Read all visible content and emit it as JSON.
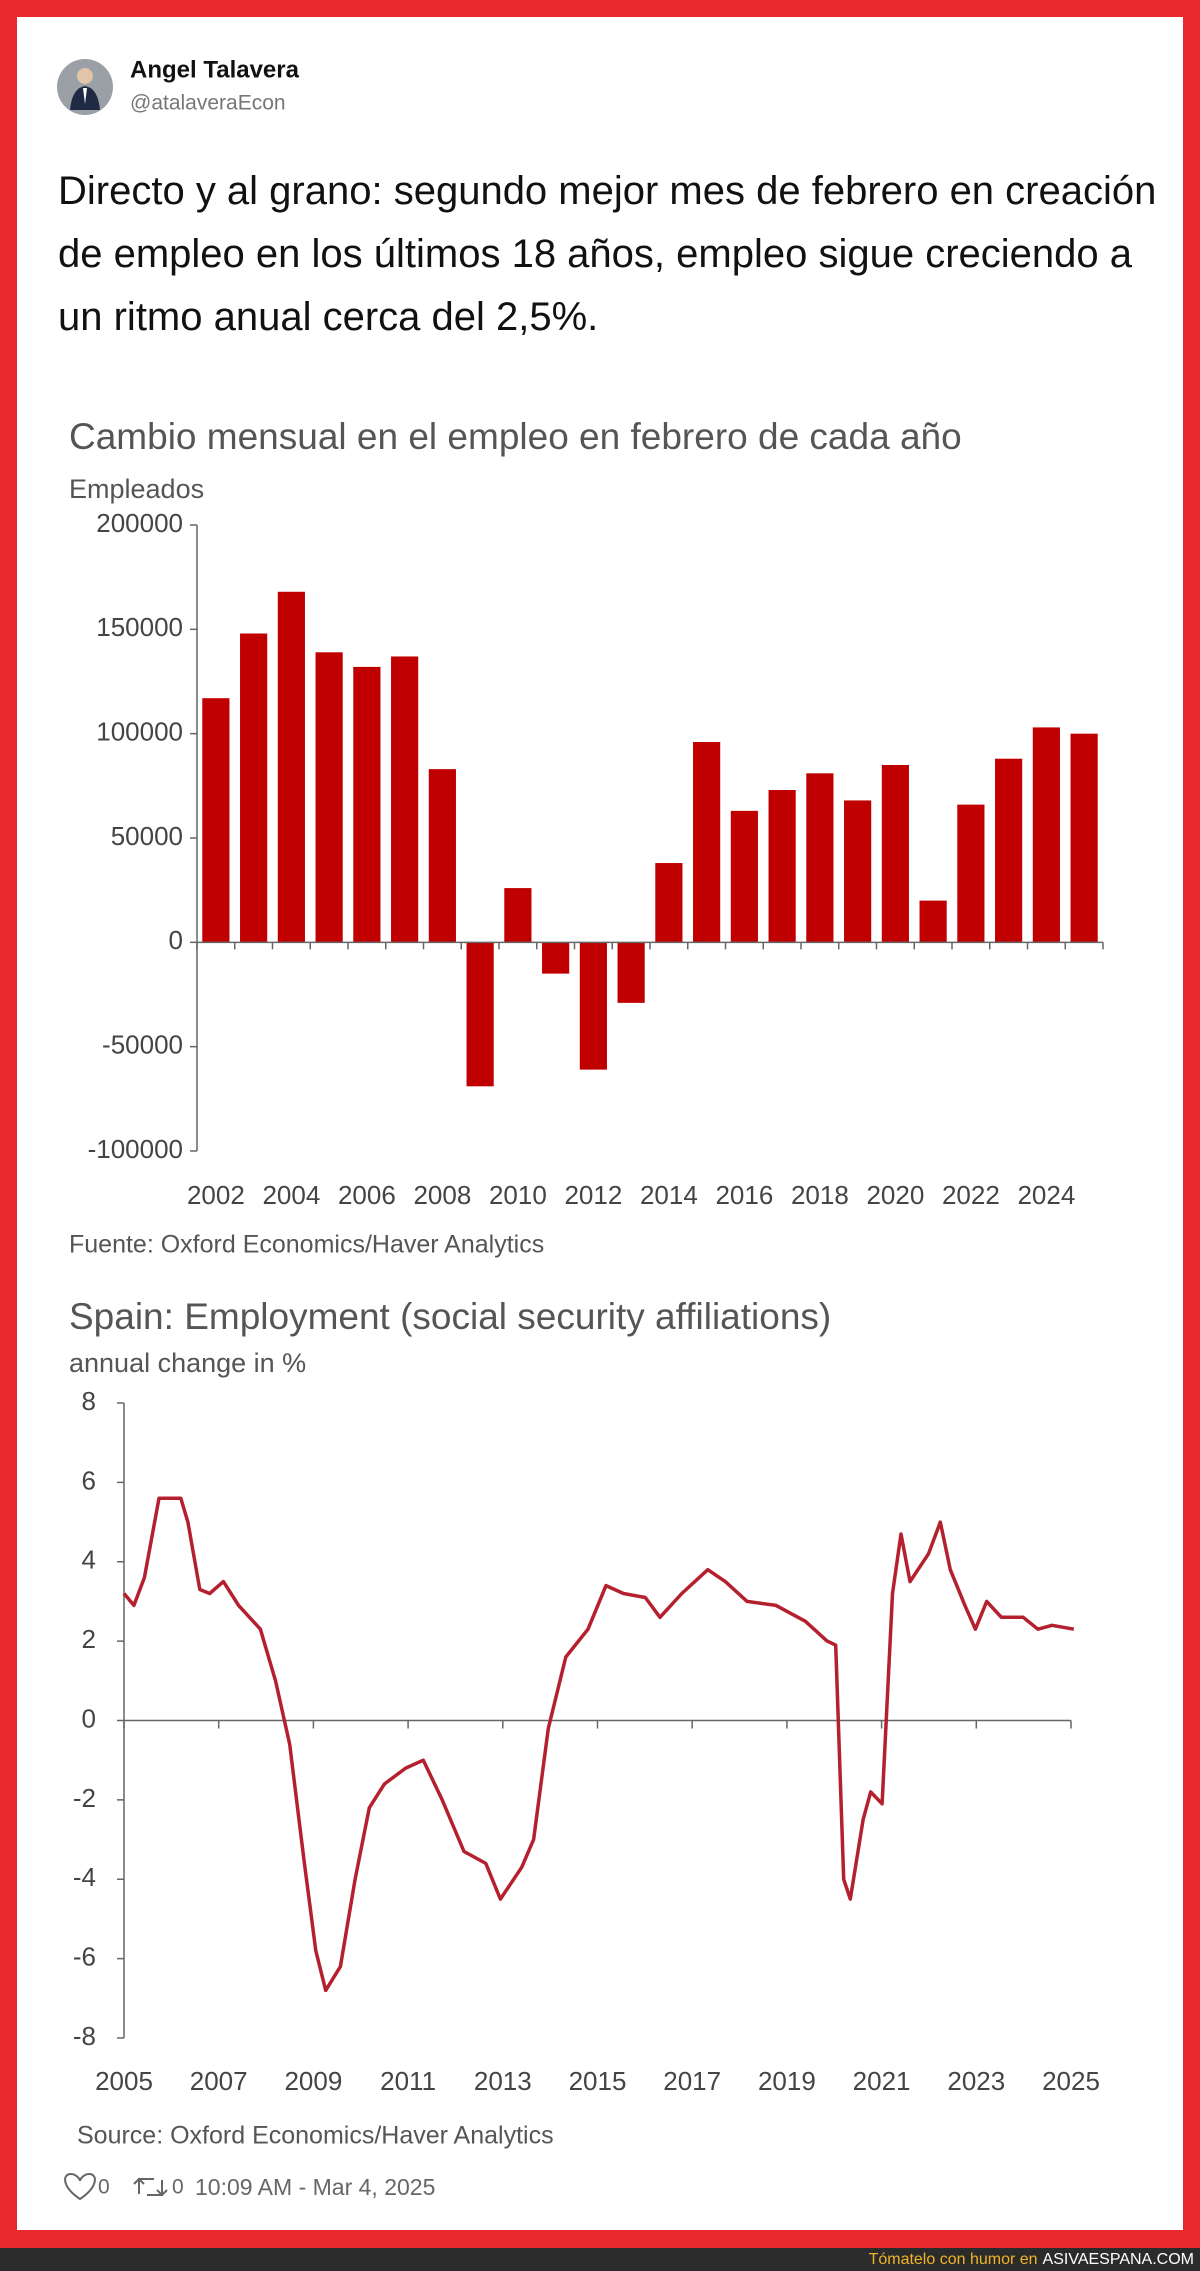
{
  "header": {
    "name": "Angel Talavera",
    "handle": "@atalaveraEcon"
  },
  "text": "Directo y al grano: segundo mejor mes de febrero en creación de empleo en los últimos 18 años, empleo sigue creciendo a un ritmo anual cerca del 2,5%.",
  "chart_data": [
    {
      "type": "bar",
      "title": "Cambio mensual en el empleo en febrero de cada año",
      "ylabel": "Empleados",
      "source": "Fuente: Oxford Economics/Haver Analytics",
      "categories": [
        "2002",
        null,
        "2004",
        null,
        "2006",
        null,
        "2008",
        null,
        "2010",
        null,
        "2012",
        null,
        "2014",
        null,
        "2016",
        null,
        "2018",
        null,
        "2020",
        null,
        "2022",
        null,
        "2024",
        null
      ],
      "values": [
        117000,
        148000,
        168000,
        139000,
        132000,
        137000,
        83000,
        -69000,
        26000,
        -15000,
        -61000,
        -29000,
        38000,
        96000,
        63000,
        73000,
        81000,
        68000,
        85000,
        20000,
        66000,
        88000,
        103000,
        100000
      ],
      "color": "#c00000",
      "ylim": [
        -100000,
        200000
      ],
      "yticks": [
        -100000,
        -50000,
        0,
        50000,
        100000,
        150000,
        200000
      ]
    },
    {
      "type": "line",
      "title": "Spain: Employment (social security affiliations)",
      "ylabel": "annual change in %",
      "source": "Source: Oxford Economics/Haver Analytics",
      "x": [
        2005.0,
        2005.21,
        2005.43,
        2005.74,
        2006.2,
        2006.35,
        2006.6,
        2006.81,
        2007.1,
        2007.42,
        2007.88,
        2008.2,
        2008.5,
        2008.8,
        2009.05,
        2009.26,
        2009.57,
        2009.88,
        2010.18,
        2010.5,
        2010.95,
        2011.32,
        2011.72,
        2012.18,
        2012.64,
        2012.95,
        2013.4,
        2013.65,
        2013.96,
        2014.33,
        2014.8,
        2015.18,
        2015.55,
        2016.01,
        2016.32,
        2016.78,
        2017.33,
        2017.7,
        2018.16,
        2018.77,
        2019.39,
        2019.85,
        2020.03,
        2020.2,
        2020.34,
        2020.61,
        2020.77,
        2021.01,
        2021.23,
        2021.41,
        2021.6,
        2021.99,
        2022.24,
        2022.45,
        2022.76,
        2022.98,
        2023.22,
        2023.53,
        2023.99,
        2024.3,
        2024.6,
        2025.06
      ],
      "values": [
        3.2,
        2.9,
        3.6,
        5.6,
        5.6,
        5.0,
        3.3,
        3.2,
        3.5,
        2.9,
        2.3,
        1.0,
        -0.6,
        -3.5,
        -5.8,
        -6.8,
        -6.2,
        -4.0,
        -2.2,
        -1.6,
        -1.2,
        -1.0,
        -2.0,
        -3.3,
        -3.6,
        -4.5,
        -3.7,
        -3.0,
        -0.2,
        1.6,
        2.3,
        3.4,
        3.2,
        3.1,
        2.6,
        3.2,
        3.8,
        3.5,
        3.0,
        2.9,
        2.5,
        2.0,
        1.9,
        -4.0,
        -4.5,
        -2.5,
        -1.8,
        -2.1,
        3.2,
        4.7,
        3.5,
        4.2,
        5.0,
        3.8,
        2.9,
        2.3,
        3.0,
        2.6,
        2.6,
        2.3,
        2.4,
        2.3
      ],
      "color": "#b5202e",
      "xlim": [
        2005,
        2025
      ],
      "xticks": [
        2005,
        2007,
        2009,
        2011,
        2013,
        2015,
        2017,
        2019,
        2021,
        2023,
        2025
      ],
      "ylim": [
        -8,
        8
      ],
      "yticks": [
        -8,
        -6,
        -4,
        -2,
        0,
        2,
        4,
        6,
        8
      ]
    }
  ],
  "footer": {
    "likes": 0,
    "retweets": 0,
    "timestamp": "10:09 AM - Mar 4, 2025"
  },
  "watermark": {
    "prefix": "Tómatelo con humor en",
    "site": "ASIVAESPANA.COM"
  }
}
